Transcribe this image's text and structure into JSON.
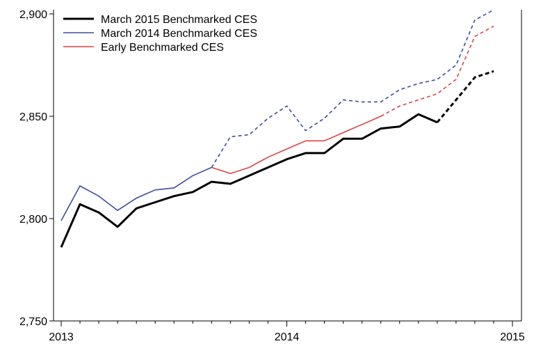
{
  "chart_data": {
    "type": "line",
    "title": "",
    "xlabel": "",
    "ylabel": "",
    "x_range": [
      "2013-01",
      "2015-01"
    ],
    "ylim": [
      2750,
      2900
    ],
    "y_ticks": [
      2750,
      2800,
      2850,
      2900
    ],
    "y_tick_labels": [
      "2,750",
      "2,800",
      "2,850",
      "2,900"
    ],
    "x_ticks": [
      "2013-01",
      "2014-01",
      "2015-01"
    ],
    "x_tick_labels": [
      "2013",
      "2014",
      "2015"
    ],
    "minor_x_ticks": "monthly",
    "grid": false,
    "legend_position": "top-left",
    "x": [
      "2013-01",
      "2013-02",
      "2013-03",
      "2013-04",
      "2013-05",
      "2013-06",
      "2013-07",
      "2013-08",
      "2013-09",
      "2013-10",
      "2013-11",
      "2013-12",
      "2014-01",
      "2014-02",
      "2014-03",
      "2014-04",
      "2014-05",
      "2014-06",
      "2014-07",
      "2014-08",
      "2014-09",
      "2014-10",
      "2014-11",
      "2014-12"
    ],
    "series": [
      {
        "name": "March 2015 Benchmarked CES",
        "color": "#000000",
        "line_width": 3,
        "dashed_from": "2014-09",
        "values": [
          2786,
          2807,
          2803,
          2796,
          2805,
          2808,
          2811,
          2813,
          2818,
          2817,
          2821,
          2825,
          2829,
          2832,
          2832,
          2839,
          2839,
          2844,
          2845,
          2851,
          2847,
          2858,
          2869,
          2872
        ]
      },
      {
        "name": "March 2014 Benchmarked CES",
        "color": "#3c4ba0",
        "line_width": 1.6,
        "dashed_from": "2013-09",
        "values": [
          2799,
          2816,
          2811,
          2804,
          2810,
          2814,
          2815,
          2821,
          2825,
          2840,
          2841,
          2849,
          2855,
          2843,
          2849,
          2858,
          2857,
          2857,
          2863,
          2866,
          2868,
          2875,
          2897,
          2902
        ]
      },
      {
        "name": "Early Benchmarked CES",
        "color": "#e04040",
        "line_width": 1.6,
        "dashed_from": "2014-06",
        "values": [
          null,
          null,
          null,
          null,
          null,
          null,
          null,
          null,
          2825,
          2822,
          2825,
          2830,
          2834,
          2838,
          2838,
          2842,
          2846,
          2850,
          2855,
          2858,
          2861,
          2868,
          2889,
          2894
        ]
      }
    ]
  }
}
